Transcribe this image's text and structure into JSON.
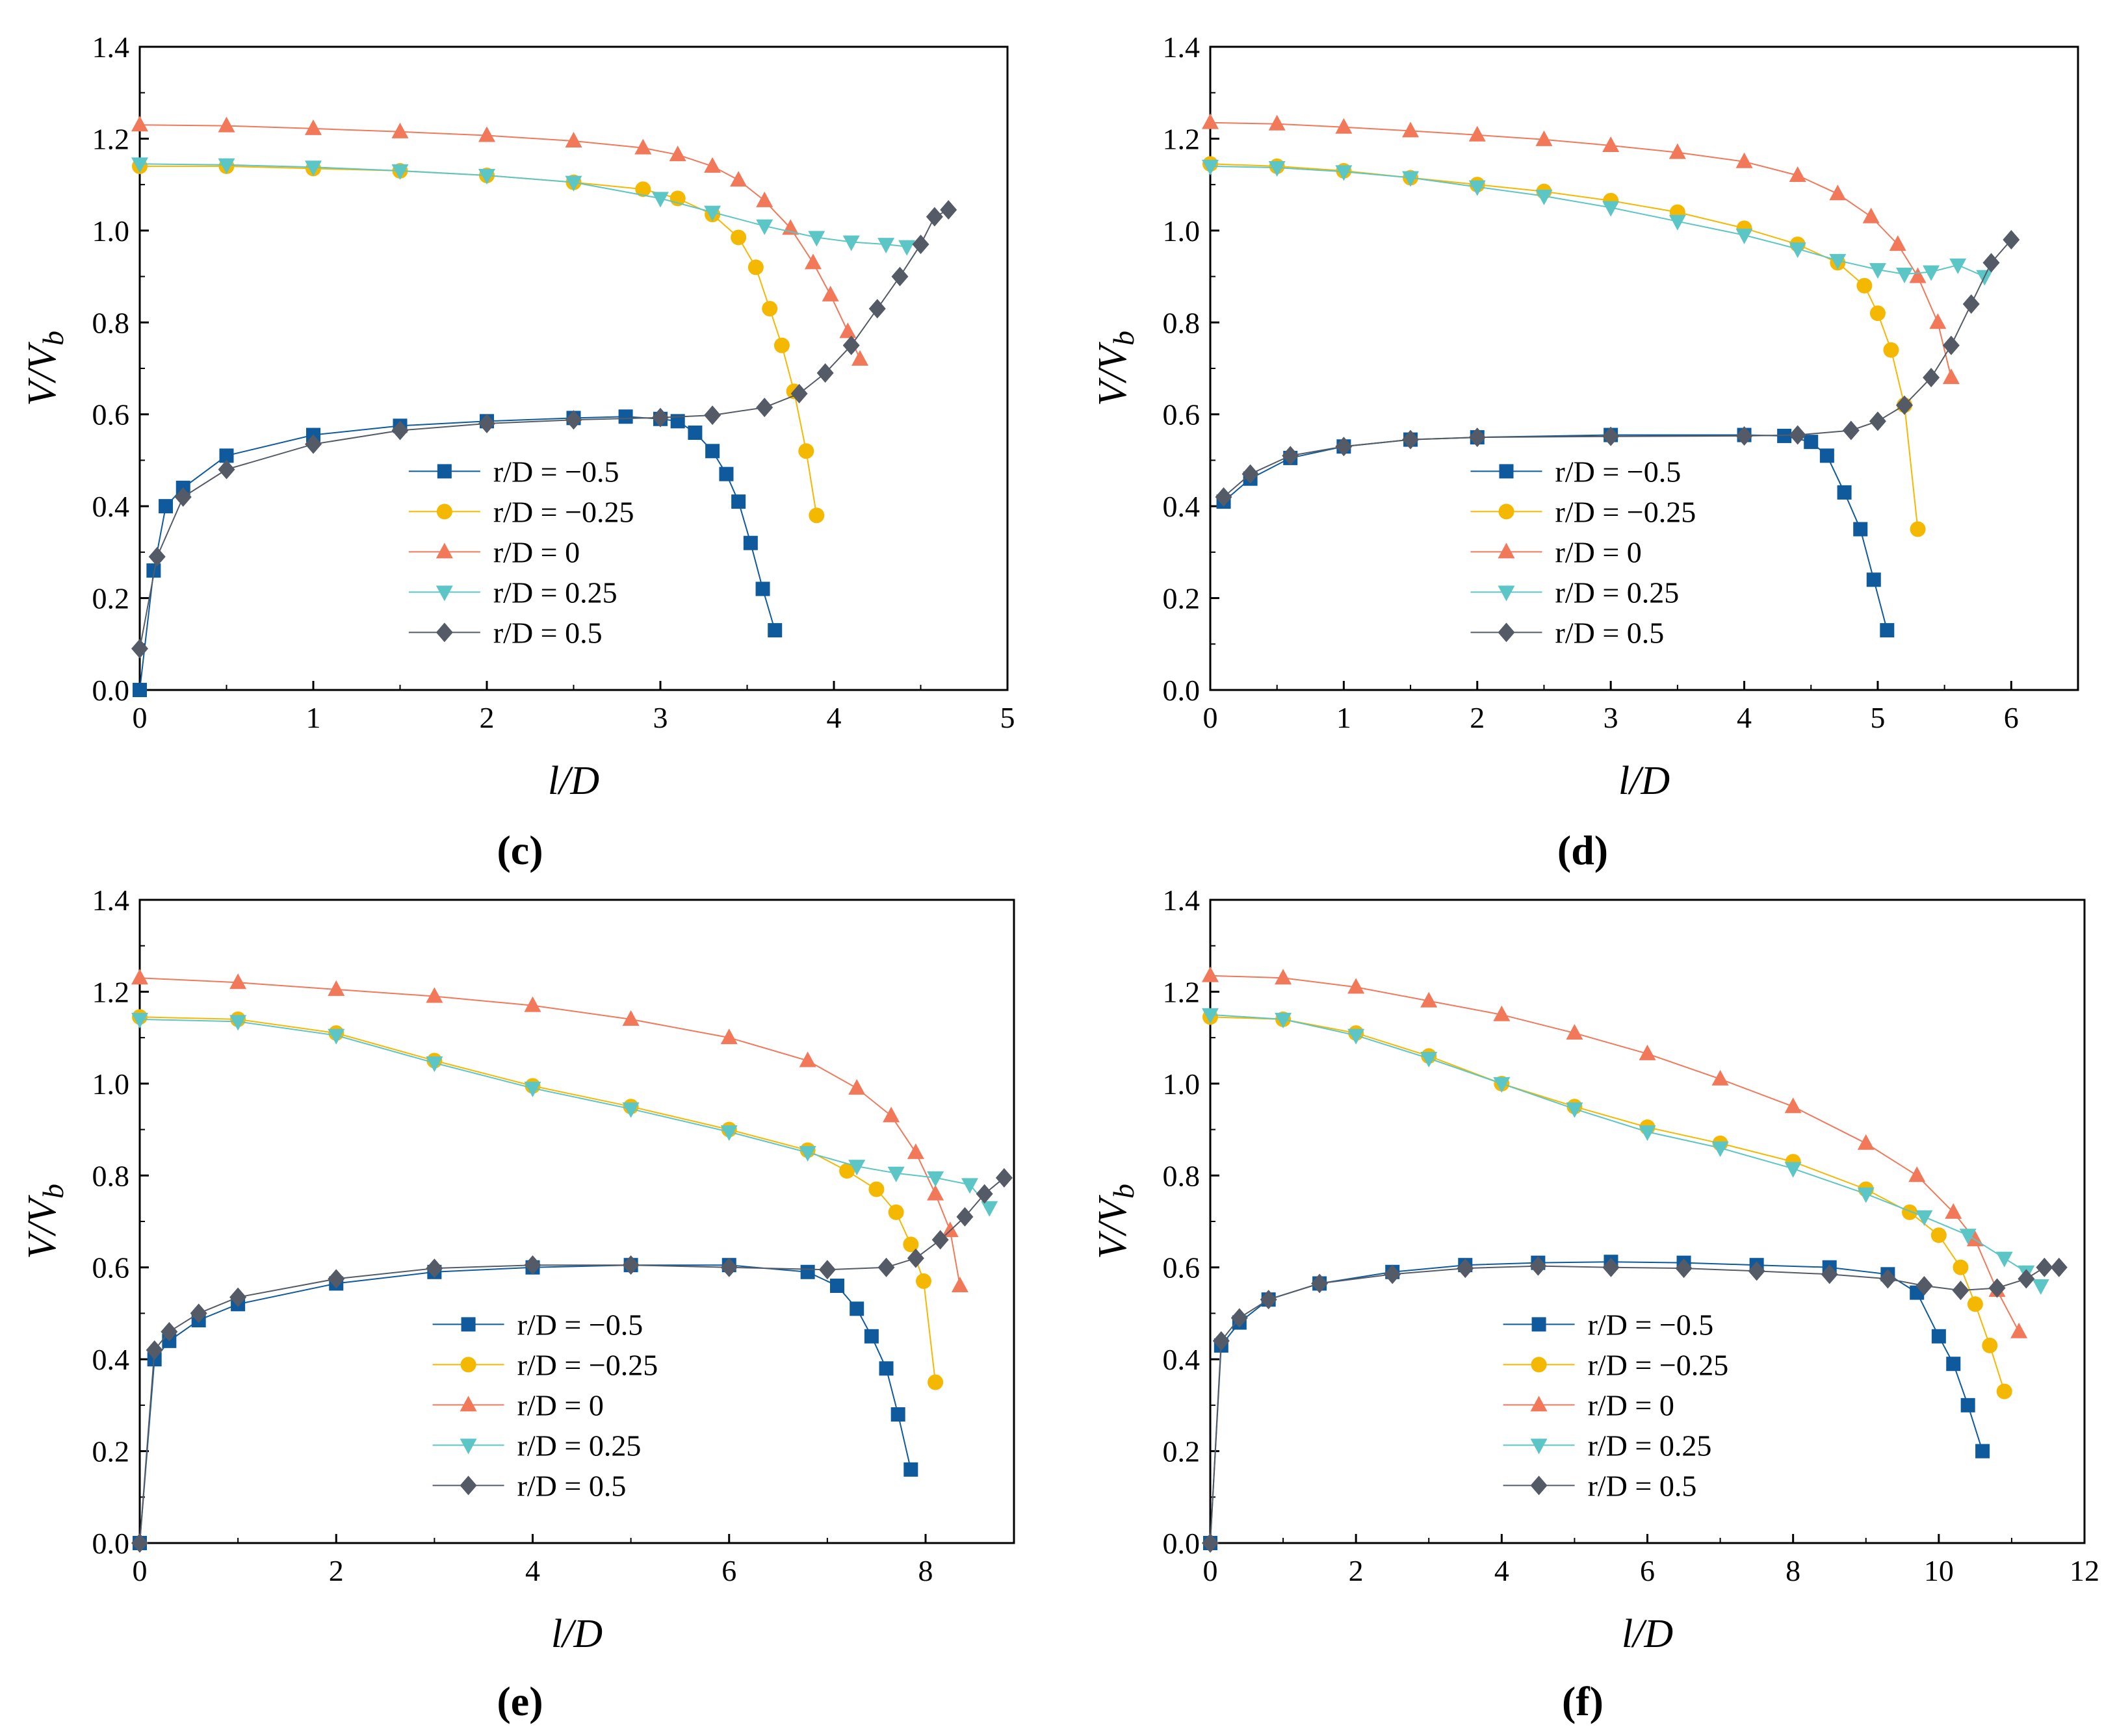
{
  "figure": {
    "panels": [
      "(c)",
      "(d)",
      "(e)",
      "(f)"
    ]
  },
  "colors": {
    "r_m0_5": "#0E5A9C",
    "r_m0_25": "#F5B800",
    "r_0": "#F2785A",
    "r_0_25": "#5CC6C6",
    "r_0_5": "#555B66",
    "axis": "#000000"
  },
  "chart_data": [
    {
      "panel": "(c)",
      "type": "line",
      "xlabel": "l/D",
      "ylabel": "V/Vb",
      "xlim": [
        0,
        5
      ],
      "ylim": [
        0,
        1.4
      ],
      "xticks": [
        "0",
        "1",
        "2",
        "3",
        "4",
        "5"
      ],
      "yticks": [
        "0.0",
        "0.2",
        "0.4",
        "0.6",
        "0.8",
        "1.0",
        "1.2",
        "1.4"
      ],
      "legend": {
        "position": "center-bottom",
        "entries": [
          "r/D = −0.5",
          "r/D = −0.25",
          "r/D = 0",
          "r/D = 0.25",
          "r/D = 0.5"
        ]
      },
      "series": [
        {
          "name": "r/D = −0.5",
          "marker": "square",
          "color": "#0E5A9C",
          "x": [
            0,
            0.08,
            0.15,
            0.25,
            0.5,
            1.0,
            1.5,
            2.0,
            2.5,
            2.8,
            3.0,
            3.1,
            3.2,
            3.3,
            3.38,
            3.45,
            3.52,
            3.59,
            3.66
          ],
          "y": [
            0.0,
            0.26,
            0.4,
            0.44,
            0.51,
            0.555,
            0.575,
            0.585,
            0.592,
            0.595,
            0.59,
            0.585,
            0.56,
            0.52,
            0.47,
            0.41,
            0.32,
            0.22,
            0.13
          ]
        },
        {
          "name": "r/D = −0.25",
          "marker": "circle",
          "color": "#F5B800",
          "x": [
            0,
            0.5,
            1.0,
            1.5,
            2.0,
            2.5,
            2.9,
            3.1,
            3.3,
            3.45,
            3.55,
            3.63,
            3.7,
            3.77,
            3.84,
            3.9
          ],
          "y": [
            1.14,
            1.14,
            1.135,
            1.13,
            1.12,
            1.105,
            1.09,
            1.07,
            1.035,
            0.985,
            0.92,
            0.83,
            0.75,
            0.65,
            0.52,
            0.38
          ]
        },
        {
          "name": "r/D = 0",
          "marker": "triangle-up",
          "color": "#F2785A",
          "x": [
            0,
            0.5,
            1.0,
            1.5,
            2.0,
            2.5,
            2.9,
            3.1,
            3.3,
            3.45,
            3.6,
            3.75,
            3.88,
            3.98,
            4.08,
            4.15
          ],
          "y": [
            1.23,
            1.228,
            1.222,
            1.215,
            1.207,
            1.195,
            1.18,
            1.165,
            1.14,
            1.11,
            1.065,
            1.005,
            0.93,
            0.86,
            0.78,
            0.72
          ]
        },
        {
          "name": "r/D = 0.25",
          "marker": "triangle-down",
          "color": "#5CC6C6",
          "x": [
            0,
            0.5,
            1.0,
            1.5,
            2.0,
            2.5,
            3.0,
            3.3,
            3.6,
            3.9,
            4.1,
            4.3,
            4.42
          ],
          "y": [
            1.145,
            1.143,
            1.138,
            1.13,
            1.12,
            1.105,
            1.07,
            1.04,
            1.01,
            0.985,
            0.975,
            0.97,
            0.965
          ]
        },
        {
          "name": "r/D = 0.5",
          "marker": "diamond",
          "color": "#555B66",
          "x": [
            0,
            0.1,
            0.25,
            0.5,
            1.0,
            1.5,
            2.0,
            2.5,
            3.0,
            3.3,
            3.6,
            3.8,
            3.95,
            4.1,
            4.25,
            4.38,
            4.5,
            4.58,
            4.66
          ],
          "y": [
            0.09,
            0.29,
            0.42,
            0.48,
            0.535,
            0.565,
            0.58,
            0.588,
            0.593,
            0.598,
            0.615,
            0.645,
            0.69,
            0.75,
            0.83,
            0.9,
            0.97,
            1.03,
            1.045
          ]
        }
      ]
    },
    {
      "panel": "(d)",
      "type": "line",
      "xlabel": "l/D",
      "ylabel": "V/Vb",
      "xlim": [
        0,
        6.5
      ],
      "ylim": [
        0,
        1.4
      ],
      "xticks": [
        "0",
        "1",
        "2",
        "3",
        "4",
        "5",
        "6"
      ],
      "yticks": [
        "0.0",
        "0.2",
        "0.4",
        "0.6",
        "0.8",
        "1.0",
        "1.2",
        "1.4"
      ],
      "legend": {
        "position": "center-bottom",
        "entries": [
          "r/D = −0.5",
          "r/D = −0.25",
          "r/D = 0",
          "r/D = 0.25",
          "r/D = 0.5"
        ]
      },
      "series": [
        {
          "name": "r/D = −0.5",
          "marker": "square",
          "color": "#0E5A9C",
          "x": [
            0.1,
            0.3,
            0.6,
            1.0,
            1.5,
            2.0,
            3.0,
            4.0,
            4.3,
            4.5,
            4.62,
            4.75,
            4.87,
            4.97,
            5.07
          ],
          "y": [
            0.41,
            0.46,
            0.505,
            0.53,
            0.545,
            0.55,
            0.555,
            0.555,
            0.553,
            0.54,
            0.51,
            0.43,
            0.35,
            0.24,
            0.13
          ]
        },
        {
          "name": "r/D = −0.25",
          "marker": "circle",
          "color": "#F5B800",
          "x": [
            0,
            0.5,
            1.0,
            1.5,
            2.0,
            2.5,
            3.0,
            3.5,
            4.0,
            4.4,
            4.7,
            4.9,
            5.0,
            5.1,
            5.2,
            5.3
          ],
          "y": [
            1.145,
            1.14,
            1.13,
            1.115,
            1.1,
            1.085,
            1.065,
            1.04,
            1.005,
            0.97,
            0.93,
            0.88,
            0.82,
            0.74,
            0.62,
            0.35
          ]
        },
        {
          "name": "r/D = 0",
          "marker": "triangle-up",
          "color": "#F2785A",
          "x": [
            0,
            0.5,
            1.0,
            1.5,
            2.0,
            2.5,
            3.0,
            3.5,
            4.0,
            4.4,
            4.7,
            4.95,
            5.15,
            5.3,
            5.45,
            5.55
          ],
          "y": [
            1.235,
            1.232,
            1.225,
            1.217,
            1.208,
            1.198,
            1.185,
            1.17,
            1.15,
            1.12,
            1.08,
            1.03,
            0.97,
            0.9,
            0.8,
            0.68
          ]
        },
        {
          "name": "r/D = 0.25",
          "marker": "triangle-down",
          "color": "#5CC6C6",
          "x": [
            0,
            0.5,
            1.0,
            1.5,
            2.0,
            2.5,
            3.0,
            3.5,
            4.0,
            4.4,
            4.7,
            5.0,
            5.2,
            5.4,
            5.6,
            5.8
          ],
          "y": [
            1.14,
            1.137,
            1.128,
            1.115,
            1.095,
            1.075,
            1.05,
            1.02,
            0.99,
            0.96,
            0.935,
            0.915,
            0.905,
            0.91,
            0.925,
            0.9
          ]
        },
        {
          "name": "r/D = 0.5",
          "marker": "diamond",
          "color": "#555B66",
          "x": [
            0.1,
            0.3,
            0.6,
            1.0,
            1.5,
            2.0,
            3.0,
            4.0,
            4.4,
            4.8,
            5.0,
            5.2,
            5.4,
            5.55,
            5.7,
            5.85,
            6.0
          ],
          "y": [
            0.42,
            0.47,
            0.51,
            0.53,
            0.545,
            0.55,
            0.552,
            0.553,
            0.555,
            0.565,
            0.585,
            0.62,
            0.68,
            0.75,
            0.84,
            0.93,
            0.98
          ]
        }
      ]
    },
    {
      "panel": "(e)",
      "type": "line",
      "xlabel": "l/D",
      "ylabel": "V/Vb",
      "xlim": [
        0,
        8.9
      ],
      "ylim": [
        0,
        1.4
      ],
      "xticks": [
        "0",
        "2",
        "4",
        "6",
        "8"
      ],
      "yticks": [
        "0.0",
        "0.2",
        "0.4",
        "0.6",
        "0.8",
        "1.0",
        "1.2",
        "1.4"
      ],
      "legend": {
        "position": "center-bottom",
        "entries": [
          "r/D = −0.5",
          "r/D = −0.25",
          "r/D = 0",
          "r/D = 0.25",
          "r/D = 0.5"
        ]
      },
      "series": [
        {
          "name": "r/D = −0.5",
          "marker": "square",
          "color": "#0E5A9C",
          "x": [
            0,
            0.15,
            0.3,
            0.6,
            1.0,
            2.0,
            3.0,
            4.0,
            5.0,
            6.0,
            6.8,
            7.1,
            7.3,
            7.45,
            7.6,
            7.72,
            7.85
          ],
          "y": [
            0.0,
            0.4,
            0.44,
            0.485,
            0.52,
            0.565,
            0.59,
            0.6,
            0.605,
            0.605,
            0.59,
            0.56,
            0.51,
            0.45,
            0.38,
            0.28,
            0.16
          ]
        },
        {
          "name": "r/D = −0.25",
          "marker": "circle",
          "color": "#F5B800",
          "x": [
            0,
            1.0,
            2.0,
            3.0,
            4.0,
            5.0,
            6.0,
            6.8,
            7.2,
            7.5,
            7.7,
            7.85,
            7.98,
            8.1
          ],
          "y": [
            1.145,
            1.14,
            1.11,
            1.05,
            0.995,
            0.95,
            0.9,
            0.855,
            0.81,
            0.77,
            0.72,
            0.65,
            0.57,
            0.35
          ]
        },
        {
          "name": "r/D = 0",
          "marker": "triangle-up",
          "color": "#F2785A",
          "x": [
            0,
            1.0,
            2.0,
            3.0,
            4.0,
            5.0,
            6.0,
            6.8,
            7.3,
            7.65,
            7.9,
            8.1,
            8.25,
            8.35
          ],
          "y": [
            1.23,
            1.22,
            1.205,
            1.19,
            1.17,
            1.14,
            1.1,
            1.05,
            0.99,
            0.93,
            0.85,
            0.76,
            0.68,
            0.56
          ]
        },
        {
          "name": "r/D = 0.25",
          "marker": "triangle-down",
          "color": "#5CC6C6",
          "x": [
            0,
            1.0,
            2.0,
            3.0,
            4.0,
            5.0,
            6.0,
            6.8,
            7.3,
            7.7,
            8.1,
            8.45,
            8.65
          ],
          "y": [
            1.14,
            1.135,
            1.105,
            1.045,
            0.99,
            0.945,
            0.895,
            0.85,
            0.82,
            0.805,
            0.795,
            0.78,
            0.73
          ]
        },
        {
          "name": "r/D = 0.5",
          "marker": "diamond",
          "color": "#555B66",
          "x": [
            0,
            0.15,
            0.3,
            0.6,
            1.0,
            2.0,
            3.0,
            4.0,
            5.0,
            6.0,
            7.0,
            7.6,
            7.9,
            8.15,
            8.4,
            8.6,
            8.8
          ],
          "y": [
            0.0,
            0.42,
            0.46,
            0.5,
            0.535,
            0.575,
            0.598,
            0.605,
            0.605,
            0.6,
            0.595,
            0.6,
            0.62,
            0.66,
            0.71,
            0.76,
            0.795
          ]
        }
      ]
    },
    {
      "panel": "(f)",
      "type": "line",
      "xlabel": "l/D",
      "ylabel": "V/Vb",
      "xlim": [
        0,
        12
      ],
      "ylim": [
        0,
        1.4
      ],
      "xticks": [
        "0",
        "2",
        "4",
        "6",
        "8",
        "10",
        "12"
      ],
      "yticks": [
        "0.0",
        "0.2",
        "0.4",
        "0.6",
        "0.8",
        "1.0",
        "1.2",
        "1.4"
      ],
      "legend": {
        "position": "center-bottom",
        "entries": [
          "r/D = −0.5",
          "r/D = −0.25",
          "r/D = 0",
          "r/D = 0.25",
          "r/D = 0.5"
        ]
      },
      "series": [
        {
          "name": "r/D = −0.5",
          "marker": "square",
          "color": "#0E5A9C",
          "x": [
            0,
            0.15,
            0.4,
            0.8,
            1.5,
            2.5,
            3.5,
            4.5,
            5.5,
            6.5,
            7.5,
            8.5,
            9.3,
            9.7,
            10.0,
            10.2,
            10.4,
            10.6
          ],
          "y": [
            0.0,
            0.43,
            0.48,
            0.53,
            0.565,
            0.59,
            0.605,
            0.61,
            0.612,
            0.61,
            0.605,
            0.6,
            0.585,
            0.545,
            0.45,
            0.39,
            0.3,
            0.2
          ]
        },
        {
          "name": "r/D = −0.25",
          "marker": "circle",
          "color": "#F5B800",
          "x": [
            0,
            1.0,
            2.0,
            3.0,
            4.0,
            5.0,
            6.0,
            7.0,
            8.0,
            9.0,
            9.6,
            10.0,
            10.3,
            10.5,
            10.7,
            10.9
          ],
          "y": [
            1.145,
            1.14,
            1.11,
            1.06,
            1.0,
            0.95,
            0.905,
            0.87,
            0.83,
            0.77,
            0.72,
            0.67,
            0.6,
            0.52,
            0.43,
            0.33
          ]
        },
        {
          "name": "r/D = 0",
          "marker": "triangle-up",
          "color": "#F2785A",
          "x": [
            0,
            1.0,
            2.0,
            3.0,
            4.0,
            5.0,
            6.0,
            7.0,
            8.0,
            9.0,
            9.7,
            10.2,
            10.5,
            10.8,
            11.1
          ],
          "y": [
            1.235,
            1.23,
            1.21,
            1.18,
            1.15,
            1.11,
            1.065,
            1.01,
            0.95,
            0.87,
            0.8,
            0.72,
            0.66,
            0.55,
            0.46
          ]
        },
        {
          "name": "r/D = 0.25",
          "marker": "triangle-down",
          "color": "#5CC6C6",
          "x": [
            0,
            1.0,
            2.0,
            3.0,
            4.0,
            5.0,
            6.0,
            7.0,
            8.0,
            9.0,
            9.8,
            10.4,
            10.9,
            11.2,
            11.4
          ],
          "y": [
            1.15,
            1.14,
            1.105,
            1.055,
            1.0,
            0.945,
            0.895,
            0.86,
            0.815,
            0.76,
            0.71,
            0.67,
            0.62,
            0.59,
            0.56
          ]
        },
        {
          "name": "r/D = 0.5",
          "marker": "diamond",
          "color": "#555B66",
          "x": [
            0,
            0.15,
            0.4,
            0.8,
            1.5,
            2.5,
            3.5,
            4.5,
            5.5,
            6.5,
            7.5,
            8.5,
            9.3,
            9.8,
            10.3,
            10.8,
            11.2,
            11.45,
            11.65
          ],
          "y": [
            0.0,
            0.44,
            0.49,
            0.53,
            0.565,
            0.585,
            0.598,
            0.603,
            0.6,
            0.598,
            0.592,
            0.585,
            0.575,
            0.56,
            0.55,
            0.555,
            0.575,
            0.6,
            0.6
          ]
        }
      ]
    }
  ]
}
